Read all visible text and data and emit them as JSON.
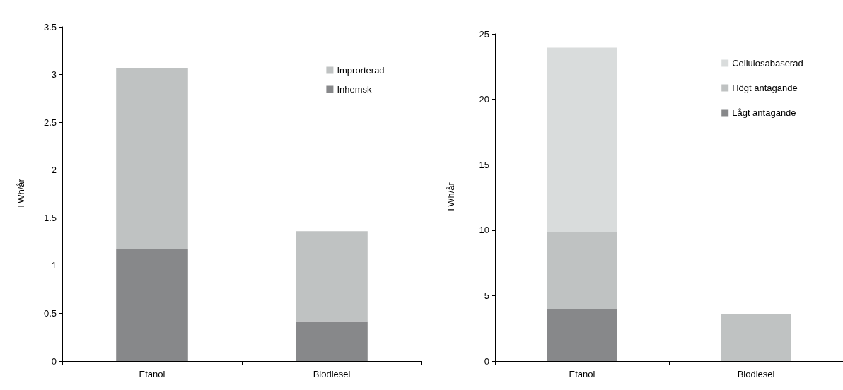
{
  "chart_data": [
    {
      "type": "bar",
      "stacked": true,
      "ylabel": "TWh/år",
      "categories": [
        "Etanol",
        "Biodiesel"
      ],
      "ylim": [
        0,
        3.5
      ],
      "yticks": [
        0,
        0.5,
        1,
        1.5,
        2,
        2.5,
        3,
        3.5
      ],
      "grid": false,
      "legend": "top right",
      "series": [
        {
          "name": "Inhemsk",
          "color": "#87888a",
          "values": [
            1.17,
            0.41
          ]
        },
        {
          "name": "Improrterad",
          "color": "#bfc2c2",
          "values": [
            1.9,
            0.95
          ]
        }
      ]
    },
    {
      "type": "bar",
      "stacked": true,
      "ylabel": "TWh/år",
      "categories": [
        "Etanol",
        "Biodiesel"
      ],
      "ylim": [
        0,
        25
      ],
      "yticks": [
        0,
        5,
        10,
        15,
        20,
        25
      ],
      "grid": false,
      "legend": "top right",
      "series": [
        {
          "name": "Lågt antagande",
          "color": "#87888a",
          "values": [
            3.95,
            null
          ]
        },
        {
          "name": "Högt antagande",
          "color": "#bfc2c2",
          "values": [
            5.9,
            3.6
          ]
        },
        {
          "name": "Cellulosabaserad",
          "color": "#d9dcdc",
          "values": [
            14.1,
            null
          ]
        }
      ]
    }
  ]
}
